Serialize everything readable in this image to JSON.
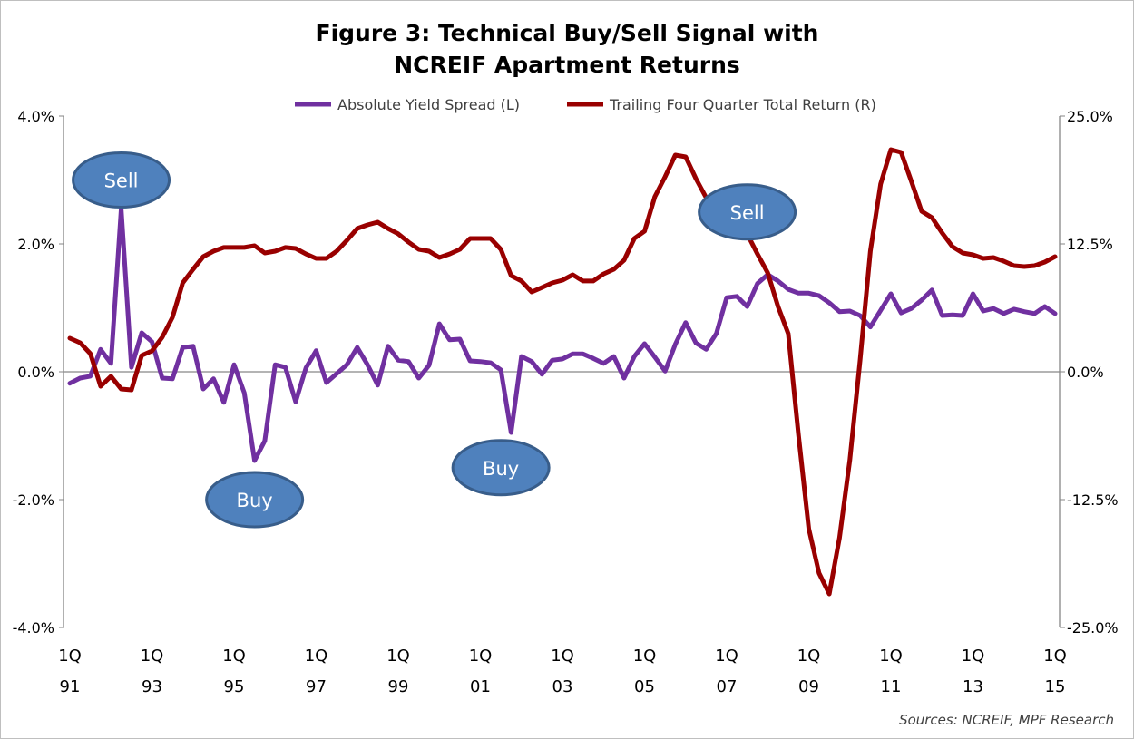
{
  "chart_data": {
    "type": "line",
    "title": "Figure 3: Technical Buy/Sell Signal with NCREIF Apartment Returns",
    "title_lines": [
      "Figure 3: Technical Buy/Sell Signal with",
      "NCREIF Apartment Returns"
    ],
    "source": "Sources: NCREIF, MPF Research",
    "x_start": "1Q91",
    "x_end": "1Q15",
    "x_frequency": "quarterly",
    "x_tick_labels": [
      {
        "top": "1Q",
        "bottom": "91"
      },
      {
        "top": "1Q",
        "bottom": "93"
      },
      {
        "top": "1Q",
        "bottom": "95"
      },
      {
        "top": "1Q",
        "bottom": "97"
      },
      {
        "top": "1Q",
        "bottom": "99"
      },
      {
        "top": "1Q",
        "bottom": "01"
      },
      {
        "top": "1Q",
        "bottom": "03"
      },
      {
        "top": "1Q",
        "bottom": "05"
      },
      {
        "top": "1Q",
        "bottom": "07"
      },
      {
        "top": "1Q",
        "bottom": "09"
      },
      {
        "top": "1Q",
        "bottom": "11"
      },
      {
        "top": "1Q",
        "bottom": "13"
      },
      {
        "top": "1Q",
        "bottom": "15"
      }
    ],
    "y_left": {
      "range": [
        -4.0,
        4.0
      ],
      "unit": "%",
      "tick_labels": [
        "4.0%",
        "2.0%",
        "0.0%",
        "-2.0%",
        "-4.0%"
      ],
      "tick_values": [
        4,
        2,
        0,
        -2,
        -4
      ]
    },
    "y_right": {
      "range": [
        -25.0,
        25.0
      ],
      "unit": "%",
      "tick_labels": [
        "25.0%",
        "12.5%",
        "0.0%",
        "-12.5%",
        "-25.0%"
      ],
      "tick_values": [
        25,
        12.5,
        0,
        -12.5,
        -25
      ]
    },
    "grid": false,
    "zero_line": true,
    "legend_position": "top",
    "series": [
      {
        "name": "Absolute Yield Spread (L)",
        "axis": "left",
        "color": "#7030A0",
        "values": [
          -0.18,
          -0.1,
          -0.07,
          0.35,
          0.13,
          2.55,
          0.07,
          0.61,
          0.47,
          -0.1,
          -0.11,
          0.38,
          0.4,
          -0.27,
          -0.11,
          -0.48,
          0.11,
          -0.33,
          -1.39,
          -1.08,
          0.11,
          0.07,
          -0.47,
          0.06,
          0.33,
          -0.17,
          -0.03,
          0.11,
          0.38,
          0.11,
          -0.21,
          0.4,
          0.18,
          0.16,
          -0.1,
          0.1,
          0.75,
          0.5,
          0.51,
          0.17,
          0.16,
          0.14,
          0.03,
          -0.95,
          0.24,
          0.16,
          -0.04,
          0.18,
          0.2,
          0.28,
          0.28,
          0.21,
          0.13,
          0.24,
          -0.1,
          0.24,
          0.44,
          0.23,
          0.01,
          0.43,
          0.77,
          0.45,
          0.35,
          0.6,
          1.16,
          1.18,
          1.02,
          1.38,
          1.52,
          1.42,
          1.29,
          1.23,
          1.23,
          1.19,
          1.08,
          0.94,
          0.95,
          0.88,
          0.7,
          0.96,
          1.22,
          0.92,
          0.99,
          1.12,
          1.28,
          0.88,
          0.89,
          0.88,
          1.22,
          0.95,
          0.99,
          0.91,
          0.98,
          0.94,
          0.91,
          1.02,
          0.91
        ]
      },
      {
        "name": "Trailing Four Quarter Total Return (R)",
        "axis": "right",
        "color": "#990000",
        "values": [
          3.28,
          2.84,
          1.77,
          -1.42,
          -0.44,
          -1.68,
          -1.77,
          1.6,
          2.04,
          3.37,
          5.32,
          8.69,
          10.02,
          11.26,
          11.79,
          12.15,
          12.15,
          12.15,
          12.32,
          11.61,
          11.79,
          12.15,
          12.06,
          11.52,
          11.08,
          11.08,
          11.79,
          12.85,
          14.01,
          14.36,
          14.63,
          14.01,
          13.48,
          12.68,
          11.97,
          11.79,
          11.17,
          11.52,
          11.97,
          13.03,
          13.03,
          13.03,
          11.97,
          9.4,
          8.87,
          7.8,
          8.24,
          8.69,
          8.95,
          9.49,
          8.87,
          8.87,
          9.57,
          10.02,
          10.9,
          13.03,
          13.74,
          17.11,
          19.06,
          21.19,
          21.01,
          18.88,
          17.02,
          14.63,
          14.18,
          13.48,
          13.48,
          11.52,
          9.66,
          6.38,
          3.72,
          -6.21,
          -15.34,
          -19.68,
          -21.72,
          -16.22,
          -8.6,
          1.15,
          11.79,
          18.35,
          21.72,
          21.45,
          18.62,
          15.69,
          15.07,
          13.56,
          12.23,
          11.61,
          11.44,
          11.08,
          11.17,
          10.82,
          10.37,
          10.28,
          10.37,
          10.73,
          11.26
        ]
      }
    ],
    "annotations": [
      {
        "text": "Sell",
        "quarter": "2Q92",
        "axis": "left",
        "value": 3.0,
        "color": "#4F81BD"
      },
      {
        "text": "Buy",
        "quarter": "3Q95",
        "axis": "left",
        "value": -2.0,
        "color": "#4F81BD"
      },
      {
        "text": "Buy",
        "quarter": "3Q01",
        "axis": "left",
        "value": -1.5,
        "color": "#4F81BD"
      },
      {
        "text": "Sell",
        "quarter": "3Q07",
        "axis": "left",
        "value": 2.5,
        "color": "#4F81BD"
      }
    ]
  }
}
